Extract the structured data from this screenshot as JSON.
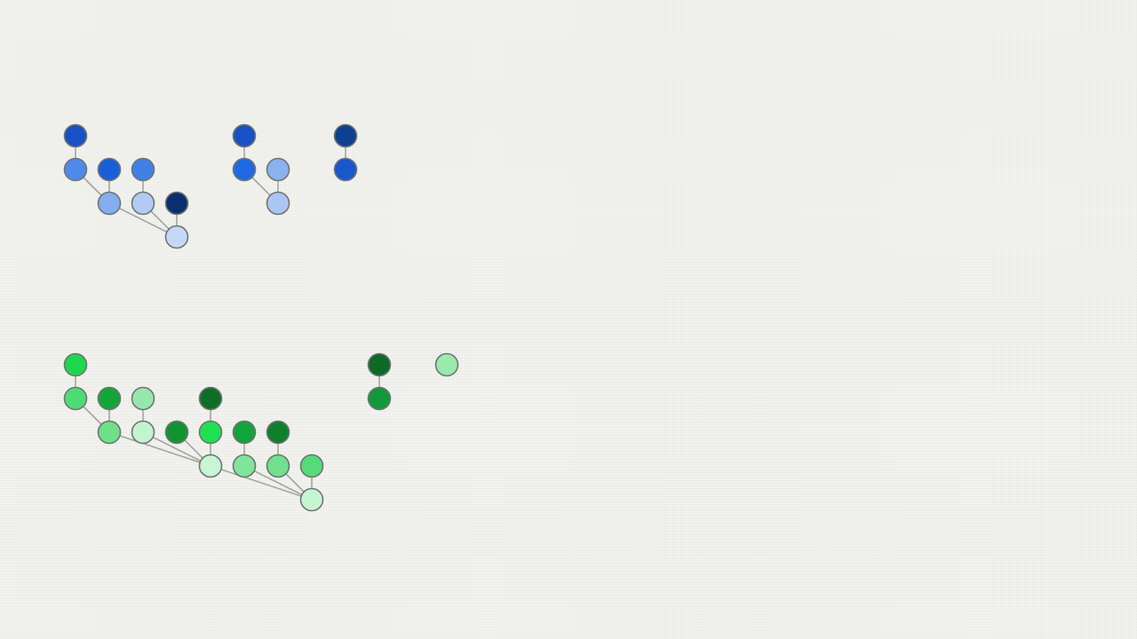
{
  "forests": [
    {
      "id": "blue-forest",
      "trees": [
        {
          "color": "#c6d8f7",
          "children": [
            {
              "color": "#84aef0",
              "children": [
                {
                  "color": "#4d8aea",
                  "children": [
                    {
                      "color": "#1850c6",
                      "children": []
                    }
                  ]
                },
                {
                  "color": "#1b5fd6",
                  "children": []
                }
              ]
            },
            {
              "color": "#b2cbf5",
              "children": [
                {
                  "color": "#3f7fe6",
                  "children": []
                }
              ]
            },
            {
              "color": "#0b2e70",
              "children": []
            }
          ]
        },
        {
          "color": "#aac6f3",
          "children": [
            {
              "color": "#1e6ae2",
              "children": [
                {
                  "color": "#1850c6",
                  "children": []
                }
              ]
            },
            {
              "color": "#8ab2ef",
              "children": []
            }
          ]
        },
        {
          "color": "#1a56cc",
          "children": [
            {
              "color": "#0e3f90",
              "children": []
            }
          ]
        }
      ]
    },
    {
      "id": "green-forest",
      "trees": [
        {
          "color": "#c6f5d2",
          "children": [
            {
              "color": "#c9f5d4",
              "children": [
                {
                  "color": "#6de08a",
                  "children": [
                    {
                      "color": "#4fdc74",
                      "children": [
                        {
                          "color": "#1ed74e",
                          "children": []
                        }
                      ]
                    },
                    {
                      "color": "#12a63a",
                      "children": []
                    }
                  ]
                },
                {
                  "color": "#c4f3d0",
                  "children": [
                    {
                      "color": "#96e8aa",
                      "children": []
                    }
                  ]
                },
                {
                  "color": "#0f9430",
                  "children": []
                },
                {
                  "color": "#1fe150",
                  "children": [
                    {
                      "color": "#0e6e26",
                      "children": []
                    }
                  ]
                }
              ]
            },
            {
              "color": "#80e49a",
              "children": [
                {
                  "color": "#12a33a",
                  "children": []
                }
              ]
            },
            {
              "color": "#72e08e",
              "children": [
                {
                  "color": "#0f7f2c",
                  "children": []
                }
              ]
            },
            {
              "color": "#54dc78",
              "children": []
            }
          ]
        },
        {
          "color": "#11993a",
          "children": [
            {
              "color": "#0c6a24",
              "children": []
            }
          ]
        },
        {
          "color": "#98eaad",
          "children": []
        }
      ]
    }
  ],
  "footer_text": ""
}
